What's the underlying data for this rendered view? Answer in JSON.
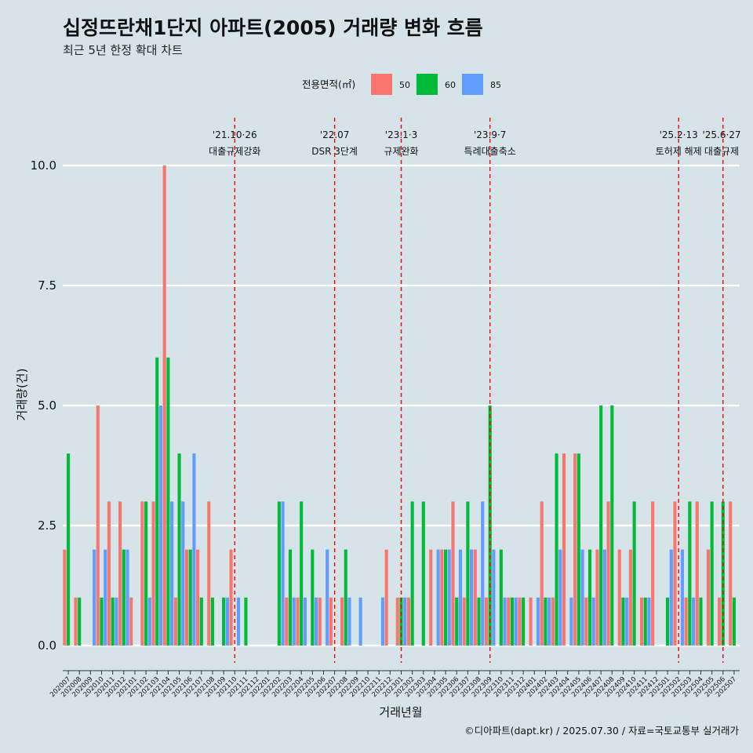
{
  "header": {
    "title": "십정뜨란채1단지 아파트(2005) 거래량 변화 흐름",
    "subtitle": "최근 5년 한정 확대 차트"
  },
  "legend": {
    "title": "전용면적(㎡)"
  },
  "caption": "©디아파트(dapt.kr) / 2025.07.30 / 자료=국토교통부 실거래가",
  "chart_data": {
    "type": "bar",
    "title": "십정뜨란채1단지 아파트(2005) 거래량 변화 흐름",
    "subtitle": "최근 5년 한정 확대 차트",
    "xlabel": "거래년월",
    "ylabel": "거래량(건)",
    "ylim": [
      0,
      10
    ],
    "yticks": [
      0,
      2.5,
      5,
      7.5,
      10
    ],
    "ytick_labels": [
      "0.0",
      "2.5",
      "5.0",
      "7.5",
      "10.0"
    ],
    "categories": [
      "202007",
      "202008",
      "202009",
      "202010",
      "202011",
      "202012",
      "202101",
      "202102",
      "202103",
      "202104",
      "202105",
      "202106",
      "202107",
      "202108",
      "202109",
      "202110",
      "202111",
      "202112",
      "202201",
      "202202",
      "202203",
      "202204",
      "202205",
      "202206",
      "202207",
      "202208",
      "202209",
      "202210",
      "202211",
      "202212",
      "202301",
      "202302",
      "202303",
      "202304",
      "202305",
      "202306",
      "202307",
      "202308",
      "202309",
      "202310",
      "202311",
      "202312",
      "202401",
      "202402",
      "202403",
      "202404",
      "202405",
      "202406",
      "202407",
      "202408",
      "202409",
      "202410",
      "202411",
      "202412",
      "202501",
      "202502",
      "202503",
      "202504",
      "202505",
      "202506",
      "202507"
    ],
    "series": [
      {
        "name": "50",
        "color": "#f8766d",
        "values": [
          2,
          1,
          0,
          5,
          3,
          3,
          1,
          3,
          3,
          10,
          1,
          2,
          2,
          3,
          0,
          2,
          0,
          0,
          0,
          0,
          1,
          1,
          0,
          1,
          1,
          1,
          0,
          0,
          0,
          2,
          1,
          1,
          0,
          2,
          2,
          3,
          1,
          2,
          1,
          0,
          1,
          1,
          1,
          3,
          1,
          4,
          4,
          1,
          2,
          3,
          2,
          2,
          1,
          3,
          0,
          3,
          1,
          3,
          2,
          1,
          3
        ]
      },
      {
        "name": "60",
        "color": "#00ba38",
        "values": [
          4,
          1,
          0,
          1,
          1,
          2,
          0,
          3,
          6,
          6,
          4,
          2,
          1,
          1,
          1,
          0,
          1,
          0,
          0,
          3,
          2,
          3,
          2,
          0,
          0,
          2,
          0,
          0,
          0,
          0,
          1,
          3,
          3,
          0,
          2,
          1,
          3,
          1,
          5,
          2,
          1,
          1,
          0,
          1,
          4,
          0,
          4,
          2,
          5,
          5,
          1,
          3,
          1,
          0,
          1,
          0,
          3,
          1,
          3,
          3,
          1
        ]
      },
      {
        "name": "85",
        "color": "#619cff",
        "values": [
          0,
          0,
          2,
          2,
          1,
          2,
          0,
          1,
          5,
          3,
          3,
          4,
          0,
          0,
          1,
          1,
          0,
          0,
          0,
          3,
          1,
          1,
          1,
          2,
          0,
          1,
          1,
          0,
          1,
          0,
          1,
          0,
          0,
          2,
          2,
          2,
          2,
          3,
          2,
          1,
          1,
          0,
          1,
          1,
          2,
          1,
          2,
          1,
          2,
          0,
          1,
          0,
          1,
          0,
          2,
          2,
          1,
          0,
          0,
          0,
          0
        ]
      }
    ],
    "events": [
      {
        "date": "'21.10·26",
        "label": "대출규제강화",
        "x": "202110"
      },
      {
        "date": "'22.07",
        "label": "DSR 3단계",
        "x": "202207"
      },
      {
        "date": "'23.1·3",
        "label": "규제완화",
        "x": "202301"
      },
      {
        "date": "'23.9·7",
        "label": "특례대출축소",
        "x": "202309"
      },
      {
        "date": "'25.2·13",
        "label": "토허제 해제",
        "x": "202502"
      },
      {
        "date": "'25.6·27",
        "label": "대출규제",
        "x": "202506"
      }
    ],
    "event_line_color": "#ff0000",
    "grid": true,
    "legend_position": "top"
  }
}
